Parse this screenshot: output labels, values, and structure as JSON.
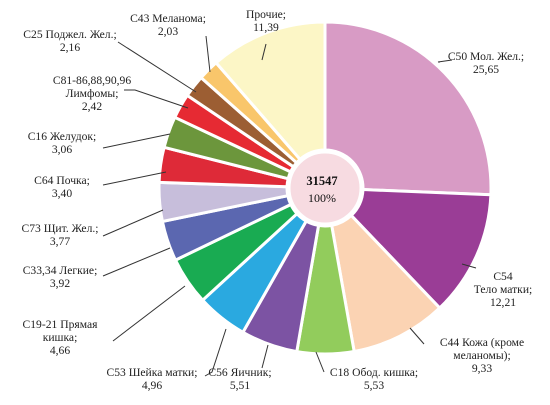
{
  "chart_data": {
    "type": "pie",
    "style": "donut",
    "center": {
      "total": "31547",
      "percent": "100%"
    },
    "slices": [
      {
        "label": "C50 Мол. Жел.;",
        "display": "25,65",
        "value": 25.65,
        "color": "#d89bc5"
      },
      {
        "label": "C54 Тело матки;",
        "display": "12,21",
        "value": 12.21,
        "color": "#9a3d96"
      },
      {
        "label": "C44 Кожа (кроме меланомы);",
        "display": "9,33",
        "value": 9.33,
        "color": "#fbd3b3"
      },
      {
        "label": "C18 Обод. кишка;",
        "display": "5,53",
        "value": 5.53,
        "color": "#92cc5c"
      },
      {
        "label": "C56 Яичник;",
        "display": "5,51",
        "value": 5.51,
        "color": "#7c53a3"
      },
      {
        "label": "C53 Шейка матки;",
        "display": "4,96",
        "value": 4.96,
        "color": "#2aa9e0"
      },
      {
        "label": "C19-21 Прямая кишка;",
        "display": "4,66",
        "value": 4.66,
        "color": "#19ab52"
      },
      {
        "label": "C33,34 Легкие;",
        "display": "3,92",
        "value": 3.92,
        "color": "#5b67b0"
      },
      {
        "label": "C73 Щит. Жел.;",
        "display": "3,77",
        "value": 3.77,
        "color": "#c7bedb"
      },
      {
        "label": "C64 Почка;",
        "display": "3,40",
        "value": 3.4,
        "color": "#de2a38"
      },
      {
        "label": "C16 Желудок;",
        "display": "3,06",
        "value": 3.06,
        "color": "#6c963c"
      },
      {
        "label": "C81-86,88,90,96 Лимфомы;",
        "display": "2,42",
        "value": 2.42,
        "color": "#e62a33"
      },
      {
        "label": "C25 Поджел. Жел.;",
        "display": "2,16",
        "value": 2.16,
        "color": "#9c5e33"
      },
      {
        "label": "C43 Меланома;",
        "display": "2,03",
        "value": 2.03,
        "color": "#f9c66b"
      },
      {
        "label": "Прочие;",
        "display": "11,39",
        "value": 11.39,
        "color": "#fcf6c6"
      }
    ]
  }
}
